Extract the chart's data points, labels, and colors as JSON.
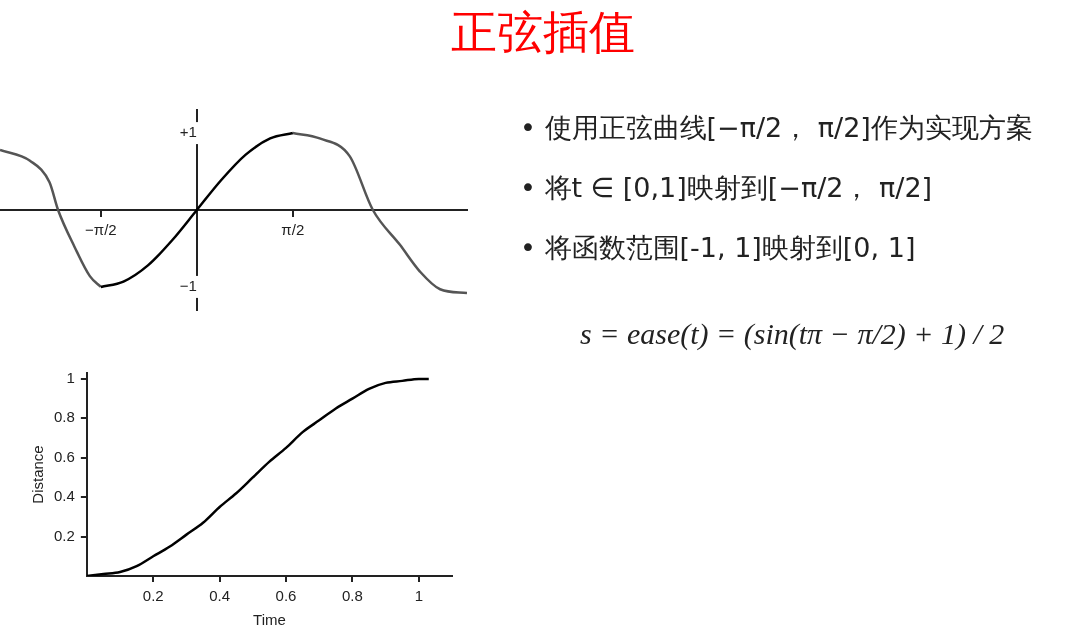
{
  "chart_data": [
    {
      "type": "line",
      "title": "正弦插值",
      "annotations": [
        "• 使用正弦曲线[−π/2， π/2]作为实现方案",
        "• 将t ∈ [0,1]映射到[−π/2， π/2]",
        "• 将函数范围[-1, 1]映射到[0, 1]",
        "s = ease(t) = (sin(tπ − π/2) + 1) / 2"
      ],
      "xlim": [
        -3.22,
        4.42
      ],
      "ylim": [
        -1.3,
        1.3
      ],
      "xticks": [
        {
          "value": -1.57,
          "label": "−π/2"
        },
        {
          "value": 1.57,
          "label": "π/2"
        }
      ],
      "yticks": [
        {
          "value": -1,
          "label": "−1"
        },
        {
          "value": 1,
          "label": "+1"
        }
      ],
      "series": [
        {
          "color": "#555555",
          "x": [
            -3.22,
            -2.73,
            -2.41,
            -2.27,
            -2.0,
            -1.75,
            -1.57,
            0,
            1.57,
            2.01,
            2.5,
            2.88,
            3.32,
            3.65,
            3.98,
            4.42
          ],
          "values": [
            0.78,
            0.64,
            0.36,
            0,
            -0.48,
            -0.86,
            -1,
            null,
            1,
            0.93,
            0.7,
            0,
            -0.45,
            -0.8,
            -1.03,
            -1.08
          ]
        },
        {
          "color": "#000000",
          "x": [
            -1.57,
            -1.2,
            -0.8,
            -0.4,
            0,
            0.4,
            0.8,
            1.2,
            1.57
          ],
          "values": [
            -1,
            -0.93,
            -0.72,
            -0.39,
            0,
            0.39,
            0.72,
            0.93,
            1
          ]
        }
      ]
    },
    {
      "type": "line",
      "xlabel": "Time",
      "ylabel": "Distance",
      "xlim": [
        0,
        1.1
      ],
      "ylim": [
        0,
        1.03
      ],
      "xticks": [
        0.2,
        0.4,
        0.6,
        0.8,
        1
      ],
      "yticks": [
        0.2,
        0.4,
        0.6,
        0.8,
        1
      ],
      "series": [
        {
          "color": "#000000",
          "x": [
            0,
            0.05,
            0.1,
            0.15,
            0.2,
            0.25,
            0.3,
            0.35,
            0.4,
            0.45,
            0.5,
            0.55,
            0.6,
            0.65,
            0.7,
            0.75,
            0.8,
            0.85,
            0.9,
            0.95,
            1,
            1.03
          ],
          "values": [
            0,
            0.01,
            0.02,
            0.05,
            0.1,
            0.15,
            0.21,
            0.27,
            0.35,
            0.42,
            0.5,
            0.58,
            0.65,
            0.73,
            0.79,
            0.85,
            0.9,
            0.95,
            0.98,
            0.99,
            1,
            1
          ]
        }
      ]
    }
  ]
}
